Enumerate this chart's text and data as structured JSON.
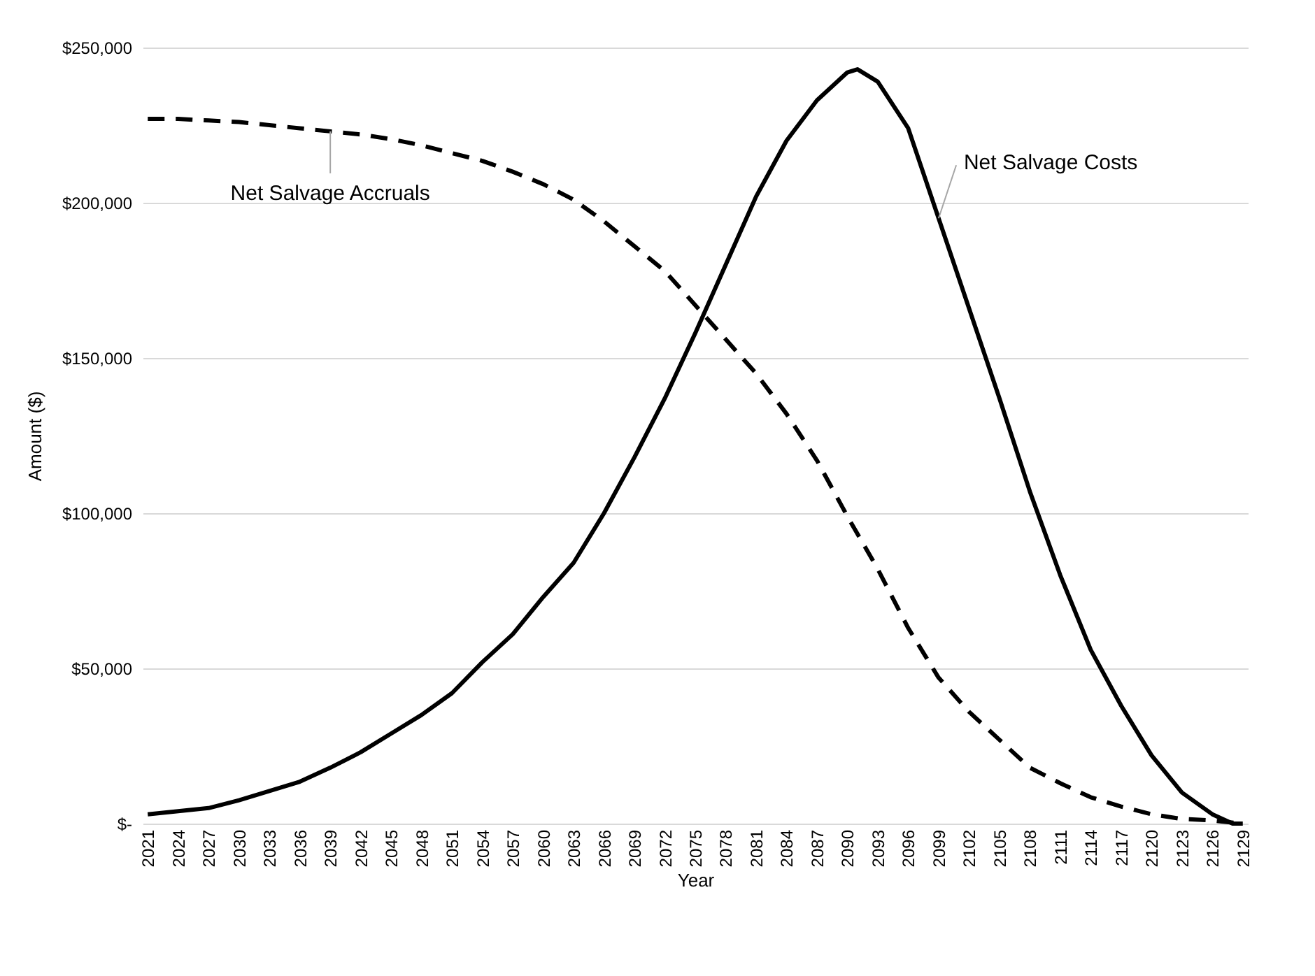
{
  "chart_data": {
    "type": "line",
    "xlabel": "Year",
    "ylabel": "Amount ($)",
    "grid": "y",
    "xlim": [
      2020.5,
      2129.5
    ],
    "xticks": [
      2021,
      2024,
      2027,
      2030,
      2033,
      2036,
      2039,
      2042,
      2045,
      2048,
      2051,
      2054,
      2057,
      2060,
      2063,
      2066,
      2069,
      2072,
      2075,
      2078,
      2081,
      2084,
      2087,
      2090,
      2093,
      2096,
      2099,
      2102,
      2105,
      2108,
      2111,
      2114,
      2117,
      2120,
      2123,
      2126,
      2129
    ],
    "ylim": [
      0,
      250000
    ],
    "yticks": [
      {
        "value": 0,
        "label": "$-"
      },
      {
        "value": 50000,
        "label": "$50,000"
      },
      {
        "value": 100000,
        "label": "$100,000"
      },
      {
        "value": 150000,
        "label": "$150,000"
      },
      {
        "value": 200000,
        "label": "$200,000"
      },
      {
        "value": 250000,
        "label": "$250,000"
      }
    ],
    "series": [
      {
        "name": "Net Salvage Costs",
        "color": "#000000",
        "line_style": "solid",
        "x": [
          2021,
          2024,
          2027,
          2030,
          2033,
          2036,
          2039,
          2042,
          2045,
          2048,
          2051,
          2054,
          2057,
          2060,
          2063,
          2066,
          2069,
          2072,
          2075,
          2078,
          2081,
          2084,
          2087,
          2090,
          2091,
          2093,
          2096,
          2099,
          2102,
          2105,
          2108,
          2111,
          2114,
          2117,
          2120,
          2123,
          2126,
          2128,
          2129
        ],
        "values": [
          3000,
          4000,
          5000,
          7500,
          10500,
          13500,
          18000,
          23000,
          29000,
          35000,
          42000,
          52000,
          61000,
          73000,
          84000,
          100000,
          118000,
          137000,
          158000,
          180000,
          202000,
          220000,
          233000,
          242000,
          243000,
          239000,
          224000,
          195000,
          166000,
          137000,
          107000,
          80000,
          56000,
          38000,
          22000,
          10000,
          3000,
          0,
          0
        ]
      },
      {
        "name": "Net Salvage Accruals",
        "color": "#000000",
        "line_style": "dashed",
        "x": [
          2021,
          2024,
          2027,
          2030,
          2033,
          2036,
          2039,
          2042,
          2045,
          2048,
          2051,
          2054,
          2057,
          2060,
          2063,
          2066,
          2069,
          2072,
          2075,
          2078,
          2081,
          2084,
          2087,
          2090,
          2093,
          2096,
          2099,
          2102,
          2105,
          2108,
          2111,
          2114,
          2117,
          2120,
          2123,
          2126,
          2129
        ],
        "values": [
          227000,
          227000,
          226500,
          226000,
          225000,
          224000,
          223000,
          222000,
          220500,
          218500,
          216000,
          213500,
          210000,
          206000,
          201000,
          194000,
          186000,
          178000,
          167000,
          156000,
          145000,
          132000,
          117000,
          99000,
          82000,
          63000,
          47000,
          36000,
          27000,
          18000,
          13000,
          8500,
          5500,
          3000,
          1500,
          1000,
          0
        ]
      }
    ]
  }
}
